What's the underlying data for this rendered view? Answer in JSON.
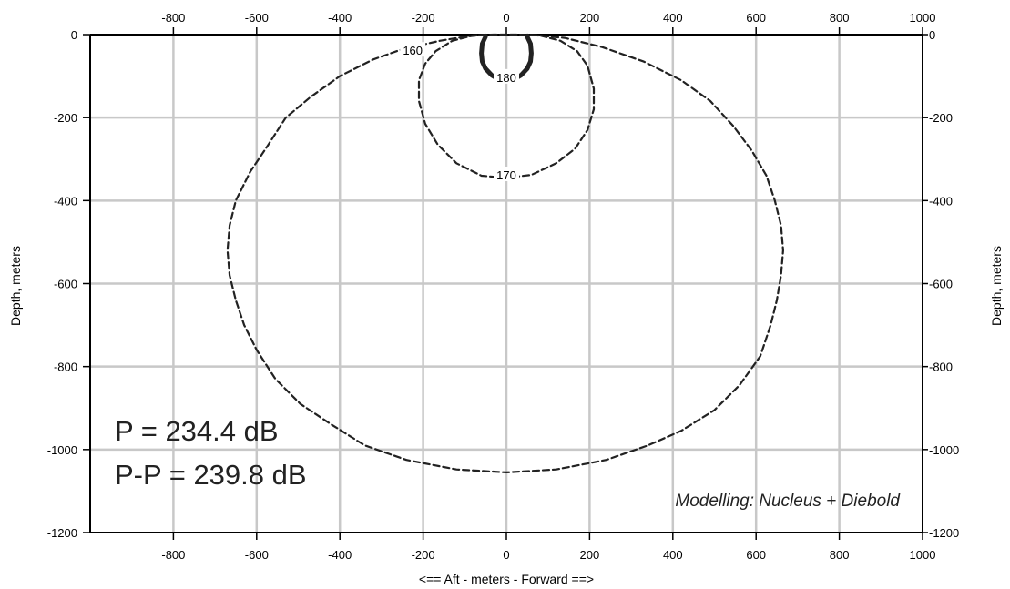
{
  "chart_data": {
    "type": "line",
    "title": "",
    "xlabel": "<==   Aft   - meters -   Forward  ==>",
    "ylabel_left": "Depth, meters",
    "ylabel_right": "Depth, meters",
    "xlim": [
      -1000,
      1000
    ],
    "ylim": [
      -1200,
      0
    ],
    "x_ticks": [
      -800,
      -600,
      -400,
      -200,
      0,
      200,
      400,
      600,
      800,
      1000
    ],
    "y_ticks": [
      0,
      -200,
      -400,
      -600,
      -800,
      -1000,
      -1200
    ],
    "grid": true,
    "series": [
      {
        "name": "160",
        "style": "dashed",
        "points": [
          [
            -50,
            0
          ],
          [
            -100,
            -5
          ],
          [
            -160,
            -15
          ],
          [
            -250,
            -35
          ],
          [
            -320,
            -60
          ],
          [
            -400,
            -100
          ],
          [
            -470,
            -150
          ],
          [
            -530,
            -200
          ],
          [
            -575,
            -270
          ],
          [
            -615,
            -330
          ],
          [
            -650,
            -400
          ],
          [
            -665,
            -460
          ],
          [
            -670,
            -520
          ],
          [
            -665,
            -580
          ],
          [
            -650,
            -640
          ],
          [
            -630,
            -700
          ],
          [
            -600,
            -760
          ],
          [
            -555,
            -830
          ],
          [
            -495,
            -890
          ],
          [
            -420,
            -940
          ],
          [
            -340,
            -990
          ],
          [
            -240,
            -1025
          ],
          [
            -120,
            -1048
          ],
          [
            0,
            -1055
          ],
          [
            120,
            -1048
          ],
          [
            240,
            -1025
          ],
          [
            340,
            -990
          ],
          [
            420,
            -955
          ],
          [
            500,
            -905
          ],
          [
            560,
            -845
          ],
          [
            610,
            -775
          ],
          [
            635,
            -700
          ],
          [
            650,
            -640
          ],
          [
            660,
            -580
          ],
          [
            665,
            -520
          ],
          [
            660,
            -460
          ],
          [
            645,
            -400
          ],
          [
            625,
            -340
          ],
          [
            590,
            -280
          ],
          [
            545,
            -220
          ],
          [
            490,
            -160
          ],
          [
            420,
            -110
          ],
          [
            330,
            -65
          ],
          [
            230,
            -30
          ],
          [
            140,
            -8
          ],
          [
            50,
            0
          ]
        ]
      },
      {
        "name": "170",
        "style": "dashed",
        "points": [
          [
            0,
            -345
          ],
          [
            -60,
            -340
          ],
          [
            -120,
            -310
          ],
          [
            -165,
            -265
          ],
          [
            -195,
            -215
          ],
          [
            -210,
            -160
          ],
          [
            -210,
            -110
          ],
          [
            -195,
            -70
          ],
          [
            -170,
            -40
          ],
          [
            -130,
            -15
          ],
          [
            -80,
            -2
          ],
          [
            -30,
            0
          ],
          [
            30,
            0
          ],
          [
            80,
            -2
          ],
          [
            130,
            -15
          ],
          [
            170,
            -40
          ],
          [
            195,
            -75
          ],
          [
            210,
            -130
          ],
          [
            210,
            -180
          ],
          [
            195,
            -230
          ],
          [
            165,
            -275
          ],
          [
            120,
            -310
          ],
          [
            60,
            -338
          ],
          [
            0,
            -345
          ]
        ]
      },
      {
        "name": "180",
        "style": "solid",
        "points": [
          [
            -50,
            -5
          ],
          [
            -58,
            -22
          ],
          [
            -60,
            -45
          ],
          [
            -58,
            -65
          ],
          [
            -50,
            -82
          ],
          [
            -35,
            -98
          ],
          [
            -18,
            -108
          ],
          [
            0,
            -110
          ],
          [
            18,
            -108
          ],
          [
            35,
            -98
          ],
          [
            50,
            -82
          ],
          [
            58,
            -65
          ],
          [
            60,
            -45
          ],
          [
            58,
            -22
          ],
          [
            50,
            -5
          ]
        ]
      }
    ],
    "contour_labels": [
      {
        "text": "160",
        "x": -225,
        "y": -40
      },
      {
        "text": "170",
        "x": 0,
        "y": -340
      },
      {
        "text": "180",
        "x": 0,
        "y": -105
      }
    ],
    "annotations": {
      "p_line": "P = 234.4 dB",
      "pp_line": "P-P = 239.8 dB",
      "modelling": "Modelling: Nucleus + Diebold"
    }
  }
}
